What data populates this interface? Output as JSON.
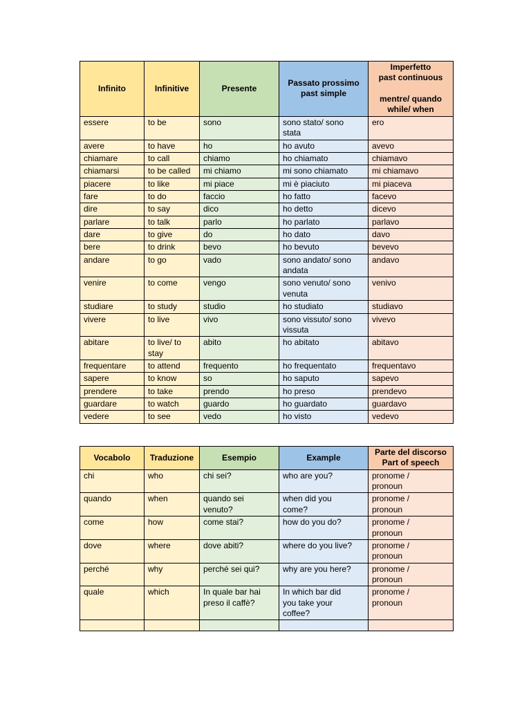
{
  "colors": {
    "border": "#000000",
    "header_yellow": "#ffe699",
    "header_green": "#c6e0b4",
    "header_blue": "#9dc3e6",
    "header_peach": "#f8cbad",
    "cell_yellow": "#fff2cc",
    "cell_green": "#e2efda",
    "cell_blue": "#deebf7",
    "cell_peach": "#fce4d6"
  },
  "verb_table": {
    "headers": [
      "Infinito",
      "Infinitive",
      "Presente",
      "Passato prossimo\npast simple",
      "Imperfetto\npast continuous\n\nmentre/ quando\nwhile/ when"
    ],
    "rows": [
      [
        "essere",
        "to be",
        "sono",
        "sono stato/ sono\nstata",
        "ero"
      ],
      [
        "avere",
        "to have",
        "ho",
        "ho avuto",
        "avevo"
      ],
      [
        "chiamare",
        "to call",
        "chiamo",
        "ho chiamato",
        "chiamavo"
      ],
      [
        "chiamarsi",
        "to be called",
        "mi chiamo",
        "mi sono chiamato",
        "mi chiamavo"
      ],
      [
        "piacere",
        "to like",
        "mi piace",
        "mi è piaciuto",
        "mi piaceva"
      ],
      [
        "fare",
        "to do",
        "faccio",
        "ho fatto",
        "facevo"
      ],
      [
        "dire",
        "to say",
        "dico",
        "ho detto",
        "dicevo"
      ],
      [
        "parlare",
        "to talk",
        "parlo",
        "ho parlato",
        "parlavo"
      ],
      [
        "dare",
        "to give",
        "do",
        "ho dato",
        "davo"
      ],
      [
        "bere",
        "to drink",
        "bevo",
        "ho bevuto",
        "bevevo"
      ],
      [
        "andare",
        "to go",
        "vado",
        "sono andato/ sono\nandata",
        "andavo"
      ],
      [
        "venire",
        "to come",
        "vengo",
        "sono venuto/ sono\nvenuta",
        "venivo"
      ],
      [
        "studiare",
        "to study",
        "studio",
        "ho studiato",
        "studiavo"
      ],
      [
        "vivere",
        "to live",
        "vivo",
        "sono vissuto/ sono\nvissuta",
        "vivevo"
      ],
      [
        "abitare",
        "to live/ to\nstay",
        "abito",
        "ho abitato",
        "abitavo"
      ],
      [
        "frequentare",
        "to attend",
        "frequento",
        "ho frequentato",
        "frequentavo"
      ],
      [
        "sapere",
        "to know",
        "so",
        "ho saputo",
        "sapevo"
      ],
      [
        "prendere",
        "to take",
        "prendo",
        "ho preso",
        "prendevo"
      ],
      [
        "guardare",
        "to watch",
        "guardo",
        "ho guardato",
        "guardavo"
      ],
      [
        "vedere",
        "to see",
        "vedo",
        "ho visto",
        "vedevo"
      ]
    ]
  },
  "vocab_table": {
    "headers": [
      "Vocabolo",
      "Traduzione",
      "Esempio",
      "Example",
      "Parte del discorso\nPart of speech"
    ],
    "rows": [
      [
        "chi",
        "who",
        "chi sei?",
        "who are you?",
        "pronome /\npronoun"
      ],
      [
        "quando",
        "when",
        "quando sei\nvenuto?",
        "when did you\ncome?",
        "pronome /\npronoun"
      ],
      [
        "come",
        "how",
        "come stai?",
        "how do you do?",
        "pronome /\npronoun"
      ],
      [
        "dove",
        "where",
        "dove abiti?",
        "where do you live?",
        "pronome /\npronoun"
      ],
      [
        "perché",
        "why",
        "perché sei qui?",
        "why are you here?",
        "pronome /\npronoun"
      ],
      [
        "quale",
        "which",
        "In quale bar hai\npreso il caffè?",
        "In which bar did\nyou take your\ncoffee?",
        "pronome /\npronoun"
      ],
      [
        "",
        "",
        "",
        "",
        ""
      ]
    ]
  }
}
